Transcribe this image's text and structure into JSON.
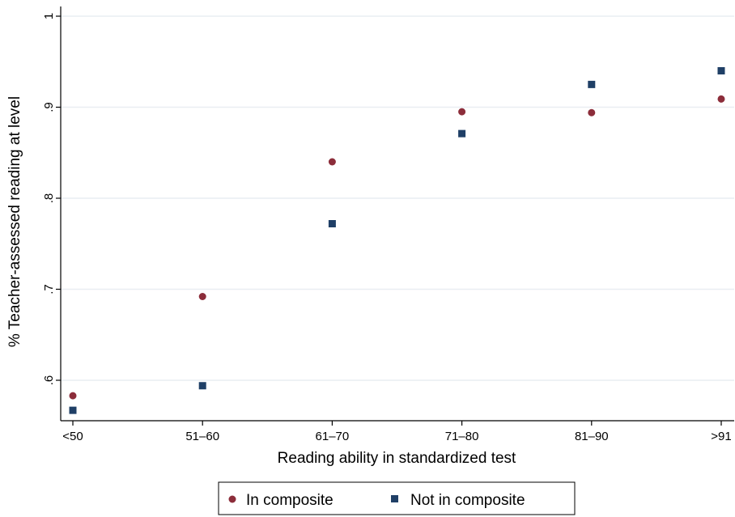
{
  "chart_data": {
    "type": "scatter",
    "title": "",
    "xlabel": "Reading ability in standardized test",
    "ylabel": "% Teacher-assessed reading at level",
    "categories": [
      "<50",
      "51–60",
      "61–70",
      "71–80",
      "81–90",
      ">91"
    ],
    "y_ticks": [
      {
        "value": 0.6,
        "label": ".6"
      },
      {
        "value": 0.7,
        "label": ".7"
      },
      {
        "value": 0.8,
        "label": ".8"
      },
      {
        "value": 0.9,
        "label": ".9"
      },
      {
        "value": 1.0,
        "label": "1"
      }
    ],
    "ylim": [
      0.555,
      1.01
    ],
    "grid": true,
    "legend_position": "bottom",
    "series": [
      {
        "name": "In composite",
        "marker": "circle",
        "color": "#8c2d3a",
        "values": [
          0.583,
          0.692,
          0.84,
          0.895,
          0.894,
          0.909
        ]
      },
      {
        "name": "Not in composite",
        "marker": "square",
        "color": "#1f3f66",
        "values": [
          0.567,
          0.594,
          0.772,
          0.871,
          0.925,
          0.94
        ]
      }
    ]
  }
}
